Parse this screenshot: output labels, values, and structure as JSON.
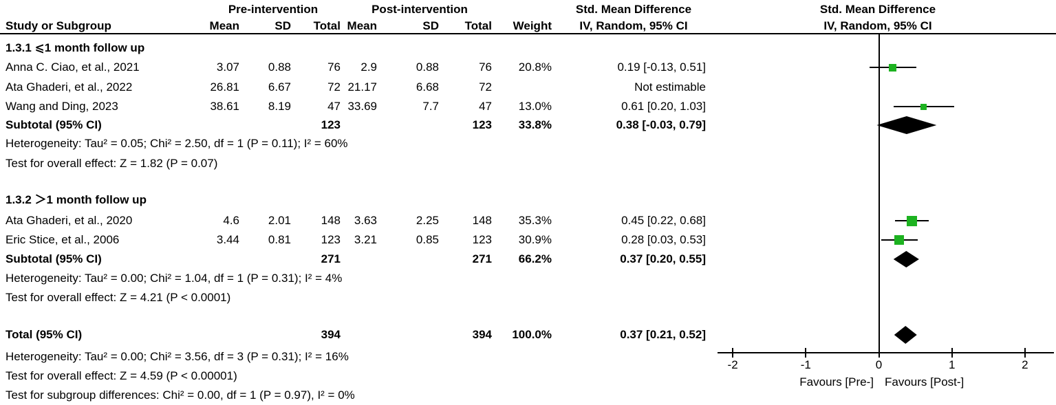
{
  "colors": {
    "marker": "#1DB220",
    "diamond": "#000000",
    "line": "#000000"
  },
  "header": {
    "pre": "Pre-intervention",
    "post": "Post-intervention",
    "study": "Study or Subgroup",
    "mean": "Mean",
    "sd": "SD",
    "total": "Total",
    "weight": "Weight",
    "smd": "Std. Mean Difference",
    "method": "IV, Random, 95% CI"
  },
  "subgroup1": {
    "label": "1.3.1 ⩽1 month follow up",
    "studies": [
      {
        "name": "Anna C. Ciao, et al., 2021",
        "mean_pre": "3.07",
        "sd_pre": "0.88",
        "total_pre": "76",
        "mean_post": "2.9",
        "sd_post": "0.88",
        "total_post": "76",
        "weight": "20.8%",
        "ci": "0.19 [-0.13, 0.51]"
      },
      {
        "name": "Ata Ghaderi, et al., 2022",
        "mean_pre": "26.81",
        "sd_pre": "6.67",
        "total_pre": "72",
        "mean_post": "21.17",
        "sd_post": "6.68",
        "total_post": "72",
        "weight": "",
        "ci": "Not estimable"
      },
      {
        "name": "Wang and Ding, 2023",
        "mean_pre": "38.61",
        "sd_pre": "8.19",
        "total_pre": "47",
        "mean_post": "33.69",
        "sd_post": "7.7",
        "total_post": "47",
        "weight": "13.0%",
        "ci": "0.61 [0.20, 1.03]"
      }
    ],
    "subtotal": {
      "label": "Subtotal (95% CI)",
      "total_pre": "123",
      "total_post": "123",
      "weight": "33.8%",
      "ci": "0.38 [-0.03, 0.79]"
    },
    "heterogeneity": "Heterogeneity: Tau² = 0.05; Chi² = 2.50, df = 1 (P = 0.11); I² = 60%",
    "overall_effect": "Test for overall effect: Z = 1.82 (P = 0.07)"
  },
  "subgroup2": {
    "label": "1.3.2 ＞1 month follow up",
    "studies": [
      {
        "name": "Ata Ghaderi, et al., 2020",
        "mean_pre": "4.6",
        "sd_pre": "2.01",
        "total_pre": "148",
        "mean_post": "3.63",
        "sd_post": "2.25",
        "total_post": "148",
        "weight": "35.3%",
        "ci": "0.45 [0.22, 0.68]"
      },
      {
        "name": "Eric Stice, et al., 2006",
        "mean_pre": "3.44",
        "sd_pre": "0.81",
        "total_pre": "123",
        "mean_post": "3.21",
        "sd_post": "0.85",
        "total_post": "123",
        "weight": "30.9%",
        "ci": "0.28 [0.03, 0.53]"
      }
    ],
    "subtotal": {
      "label": "Subtotal (95% CI)",
      "total_pre": "271",
      "total_post": "271",
      "weight": "66.2%",
      "ci": "0.37 [0.20, 0.55]"
    },
    "heterogeneity": "Heterogeneity: Tau² = 0.00; Chi² = 1.04, df = 1 (P = 0.31); I² = 4%",
    "overall_effect": "Test for overall effect: Z = 4.21 (P < 0.0001)"
  },
  "total": {
    "label": "Total (95% CI)",
    "total_pre": "394",
    "total_post": "394",
    "weight": "100.0%",
    "ci": "0.37 [0.21, 0.52]",
    "heterogeneity": "Heterogeneity: Tau² = 0.00; Chi² = 3.56, df = 3 (P = 0.31); I² = 16%",
    "overall_effect": "Test for overall effect: Z = 4.59 (P < 0.00001)",
    "subgroup_diff": "Test for subgroup differences: Chi² = 0.00, df = 1 (P = 0.97), I² = 0%"
  },
  "plot": {
    "favours_left": "Favours [Pre-]",
    "favours_right": "Favours [Post-]"
  },
  "chart_data": {
    "type": "scatter",
    "variant": "forest_plot_meta_analysis",
    "title": "Std. Mean Difference, IV, Random, 95% CI",
    "x_axis": {
      "min": -2,
      "max": 2,
      "ticks": [
        -2,
        -1,
        0,
        1,
        2
      ],
      "zero_line": 0,
      "label_left": "Favours [Pre-]",
      "label_right": "Favours [Post-]"
    },
    "studies": [
      {
        "name": "Anna C. Ciao, et al., 2021",
        "subgroup": "1.3.1",
        "est": 0.19,
        "lo": -0.13,
        "hi": 0.51,
        "weight_pct": 20.8
      },
      {
        "name": "Ata Ghaderi, et al., 2022",
        "subgroup": "1.3.1",
        "est": null,
        "lo": null,
        "hi": null,
        "weight_pct": null
      },
      {
        "name": "Wang and Ding, 2023",
        "subgroup": "1.3.1",
        "est": 0.61,
        "lo": 0.2,
        "hi": 1.03,
        "weight_pct": 13.0
      },
      {
        "name": "Ata Ghaderi, et al., 2020",
        "subgroup": "1.3.2",
        "est": 0.45,
        "lo": 0.22,
        "hi": 0.68,
        "weight_pct": 35.3
      },
      {
        "name": "Eric Stice, et al., 2006",
        "subgroup": "1.3.2",
        "est": 0.28,
        "lo": 0.03,
        "hi": 0.53,
        "weight_pct": 30.9
      }
    ],
    "diamonds": [
      {
        "name": "Subtotal 1.3.1",
        "est": 0.38,
        "lo": -0.03,
        "hi": 0.79
      },
      {
        "name": "Subtotal 1.3.2",
        "est": 0.37,
        "lo": 0.2,
        "hi": 0.55
      },
      {
        "name": "Total",
        "est": 0.37,
        "lo": 0.21,
        "hi": 0.52
      }
    ]
  }
}
